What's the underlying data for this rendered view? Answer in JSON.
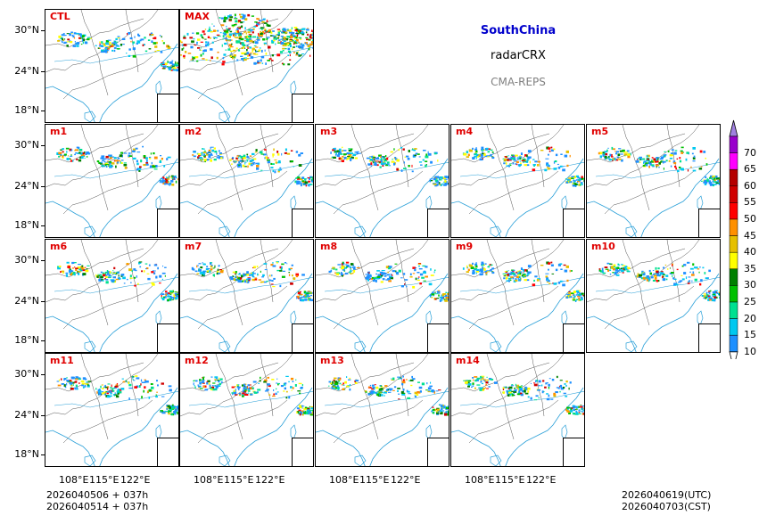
{
  "info": {
    "region": "SouthChina",
    "variable": "radarCRX",
    "model": "CMA-REPS"
  },
  "panels": [
    {
      "label": "CTL"
    },
    {
      "label": "MAX"
    },
    {
      "label": "m1"
    },
    {
      "label": "m2"
    },
    {
      "label": "m3"
    },
    {
      "label": "m4"
    },
    {
      "label": "m5"
    },
    {
      "label": "m6"
    },
    {
      "label": "m7"
    },
    {
      "label": "m8"
    },
    {
      "label": "m9"
    },
    {
      "label": "m10"
    },
    {
      "label": "m11"
    },
    {
      "label": "m12"
    },
    {
      "label": "m13"
    },
    {
      "label": "m14"
    }
  ],
  "axes": {
    "lat_labels": [
      "30°N",
      "24°N",
      "18°N"
    ],
    "lon_labels": [
      "108°E",
      "115°E",
      "122°E"
    ]
  },
  "colorbar": {
    "levels": [
      "10",
      "15",
      "20",
      "25",
      "30",
      "35",
      "40",
      "45",
      "50",
      "55",
      "60",
      "65",
      "70"
    ],
    "colors": [
      "#1e90ff",
      "#00c8f0",
      "#00e090",
      "#00c000",
      "#008000",
      "#ffff00",
      "#e6c000",
      "#ff9000",
      "#ff0000",
      "#d00000",
      "#b40000",
      "#ff00ff",
      "#9900cc",
      "#a080e0"
    ]
  },
  "footer": {
    "init_utc": "2026040506  +  037h",
    "init_cst": "2026040514  +  037h",
    "valid_utc": "2026040619(UTC)",
    "valid_cst": "2026040703(CST)"
  }
}
